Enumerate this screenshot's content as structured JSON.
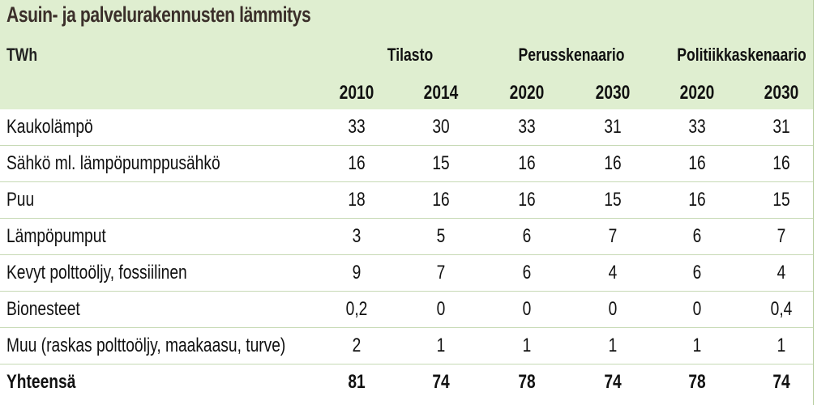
{
  "title": "Asuin- ja palvelurakennusten lämmitys",
  "unit": "TWh",
  "groups": [
    "Tilasto",
    "Perusskenaario",
    "Politiikkaskenaario"
  ],
  "years": [
    "2010",
    "2014",
    "2020",
    "2030",
    "2020",
    "2030"
  ],
  "rows": [
    {
      "label": "Kaukolämpö",
      "values": [
        "33",
        "30",
        "33",
        "31",
        "33",
        "31"
      ]
    },
    {
      "label": "Sähkö ml. lämpöpumppusähkö",
      "values": [
        "16",
        "15",
        "16",
        "16",
        "16",
        "16"
      ]
    },
    {
      "label": "Puu",
      "values": [
        "18",
        "16",
        "16",
        "15",
        "16",
        "15"
      ]
    },
    {
      "label": "Lämpöpumput",
      "values": [
        "3",
        "5",
        "6",
        "7",
        "6",
        "7"
      ]
    },
    {
      "label": "Kevyt polttoöljy, fossiilinen",
      "values": [
        "9",
        "7",
        "6",
        "4",
        "6",
        "4"
      ]
    },
    {
      "label": "Bionesteet",
      "values": [
        "0,2",
        "0",
        "0",
        "0",
        "0",
        "0,4"
      ]
    },
    {
      "label": "Muu (raskas polttoöljy, maakaasu, turve)",
      "values": [
        "2",
        "1",
        "1",
        "1",
        "1",
        "1"
      ]
    }
  ],
  "total": {
    "label": "Yhteensä",
    "values": [
      "81",
      "74",
      "78",
      "74",
      "78",
      "74"
    ]
  },
  "colors": {
    "header_background": "#dfeed0",
    "title_color": "#3b2f2a",
    "row_divider": "#c6d9b4"
  }
}
